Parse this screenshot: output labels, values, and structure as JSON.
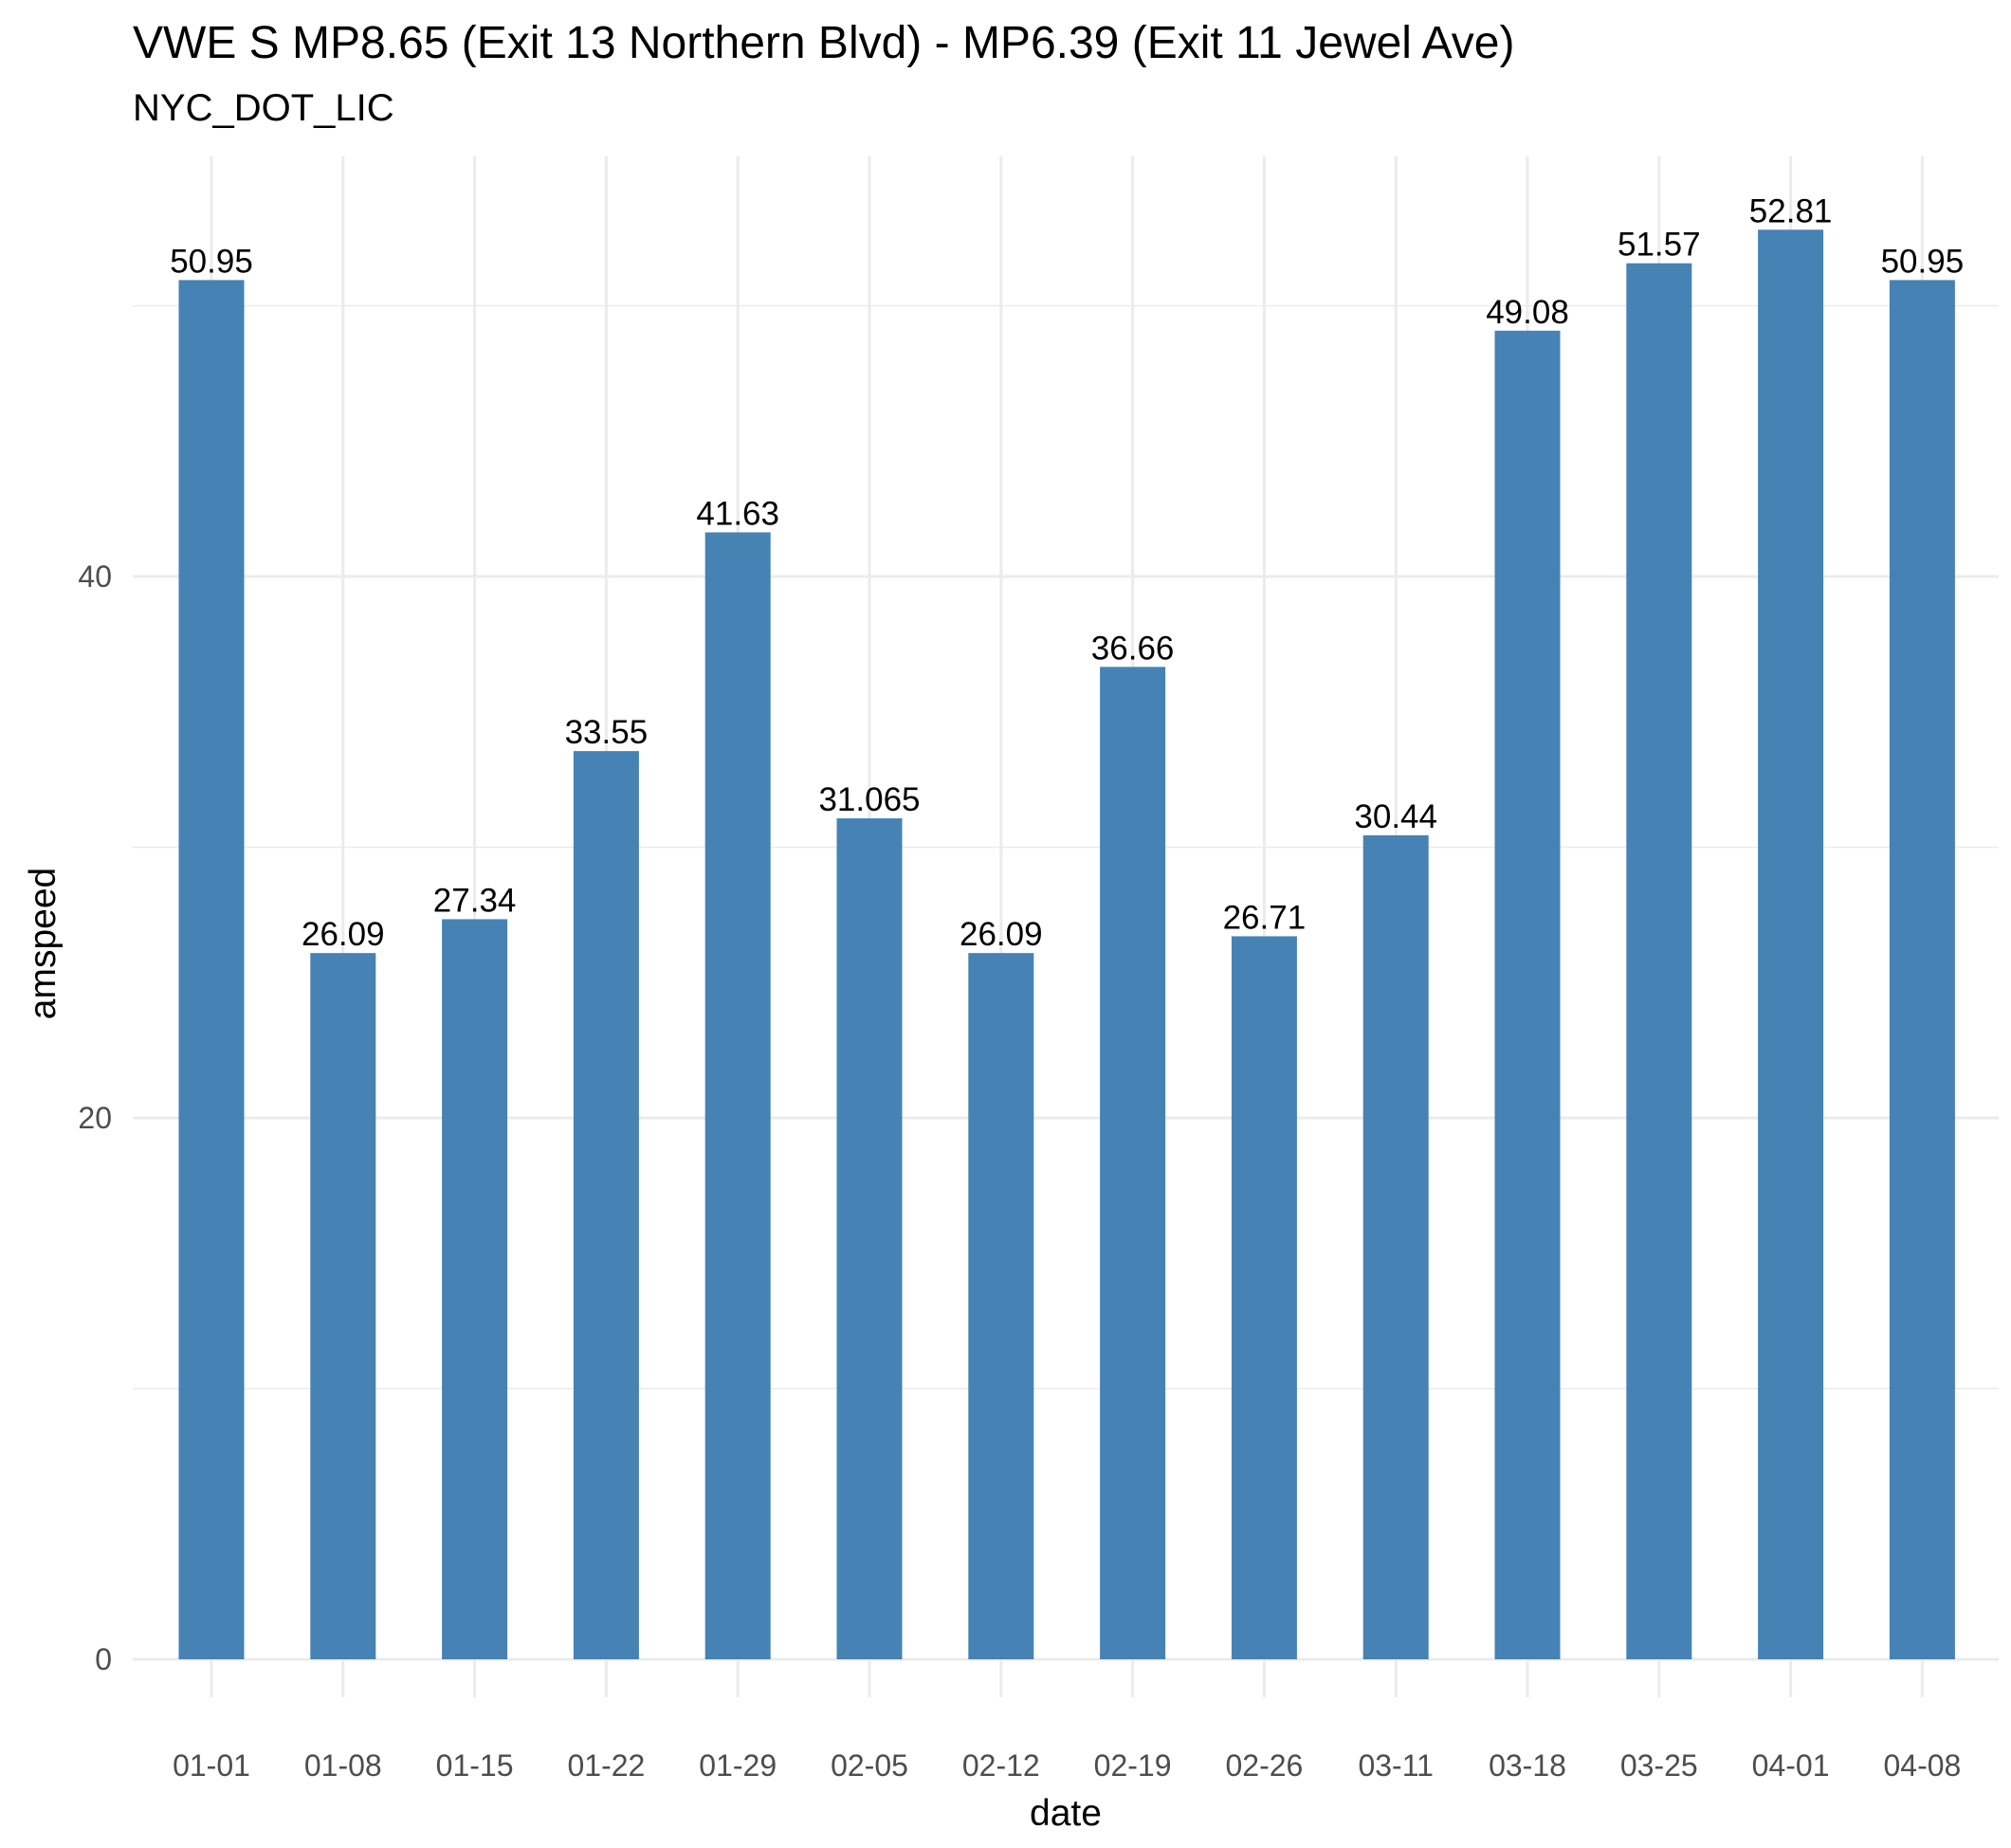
{
  "chart_data": {
    "type": "bar",
    "title": "VWE S MP8.65 (Exit 13 Northern Blvd) - MP6.39 (Exit 11 Jewel Ave)",
    "subtitle": "NYC_DOT_LIC",
    "xlabel": "date",
    "ylabel": "amspeed",
    "categories": [
      "01-01",
      "01-08",
      "01-15",
      "01-22",
      "01-29",
      "02-05",
      "02-12",
      "02-19",
      "02-26",
      "03-11",
      "03-18",
      "03-25",
      "04-01",
      "04-08"
    ],
    "values": [
      50.95,
      26.09,
      27.34,
      33.55,
      41.63,
      31.065,
      26.09,
      36.66,
      26.71,
      30.44,
      49.08,
      51.57,
      52.81,
      50.95
    ],
    "data_labels": [
      "50.95",
      "26.09",
      "27.34",
      "33.55",
      "41.63",
      "31.065",
      "26.09",
      "36.66",
      "26.71",
      "30.44",
      "49.08",
      "51.57",
      "52.81",
      "50.95"
    ],
    "yticks": [
      0,
      20,
      40
    ],
    "ylim": [
      0,
      55.5
    ],
    "grid": true,
    "legend": "none",
    "bar_color": "#4682B4",
    "grid_color": "#EBEBEB"
  }
}
